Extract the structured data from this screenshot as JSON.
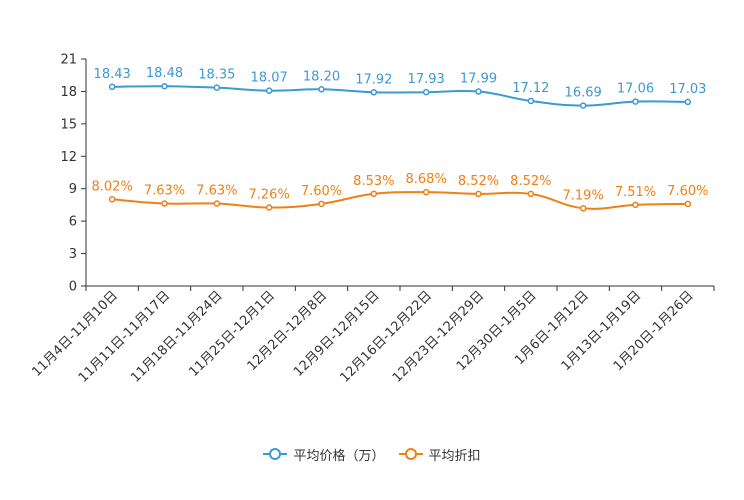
{
  "chart_data": {
    "type": "line",
    "categories": [
      "11月4日-11月10日",
      "11月11日-11月17日",
      "11月18日-11月24日",
      "11月25日-12月1日",
      "12月2日-12月8日",
      "12月9日-12月15日",
      "12月16日-12月22日",
      "12月23日-12月29日",
      "12月30日-1月5日",
      "1月6日-1月12日",
      "1月13日-1月19日",
      "1月20日-1月26日"
    ],
    "series": [
      {
        "name": "平均价格（万）",
        "color": "#3a9ad3",
        "values": [
          18.43,
          18.48,
          18.35,
          18.07,
          18.2,
          17.92,
          17.93,
          17.99,
          17.12,
          16.69,
          17.06,
          17.03
        ],
        "labels": [
          "18.43",
          "18.48",
          "18.35",
          "18.07",
          "18.20",
          "17.92",
          "17.93",
          "17.99",
          "17.12",
          "16.69",
          "17.06",
          "17.03"
        ]
      },
      {
        "name": "平均折扣",
        "color": "#f07f16",
        "values": [
          8.02,
          7.63,
          7.63,
          7.26,
          7.6,
          8.53,
          8.68,
          8.52,
          8.52,
          7.19,
          7.51,
          7.6
        ],
        "labels": [
          "8.02%",
          "7.63%",
          "7.63%",
          "7.26%",
          "7.60%",
          "8.53%",
          "8.68%",
          "8.52%",
          "8.52%",
          "7.19%",
          "7.51%",
          "7.60%"
        ]
      }
    ],
    "ylim": [
      0,
      21
    ],
    "yticks": [
      0,
      3,
      6,
      9,
      12,
      15,
      18,
      21
    ],
    "grid": false,
    "legend": "bottom-center",
    "title": "",
    "xlabel": "",
    "ylabel": ""
  }
}
